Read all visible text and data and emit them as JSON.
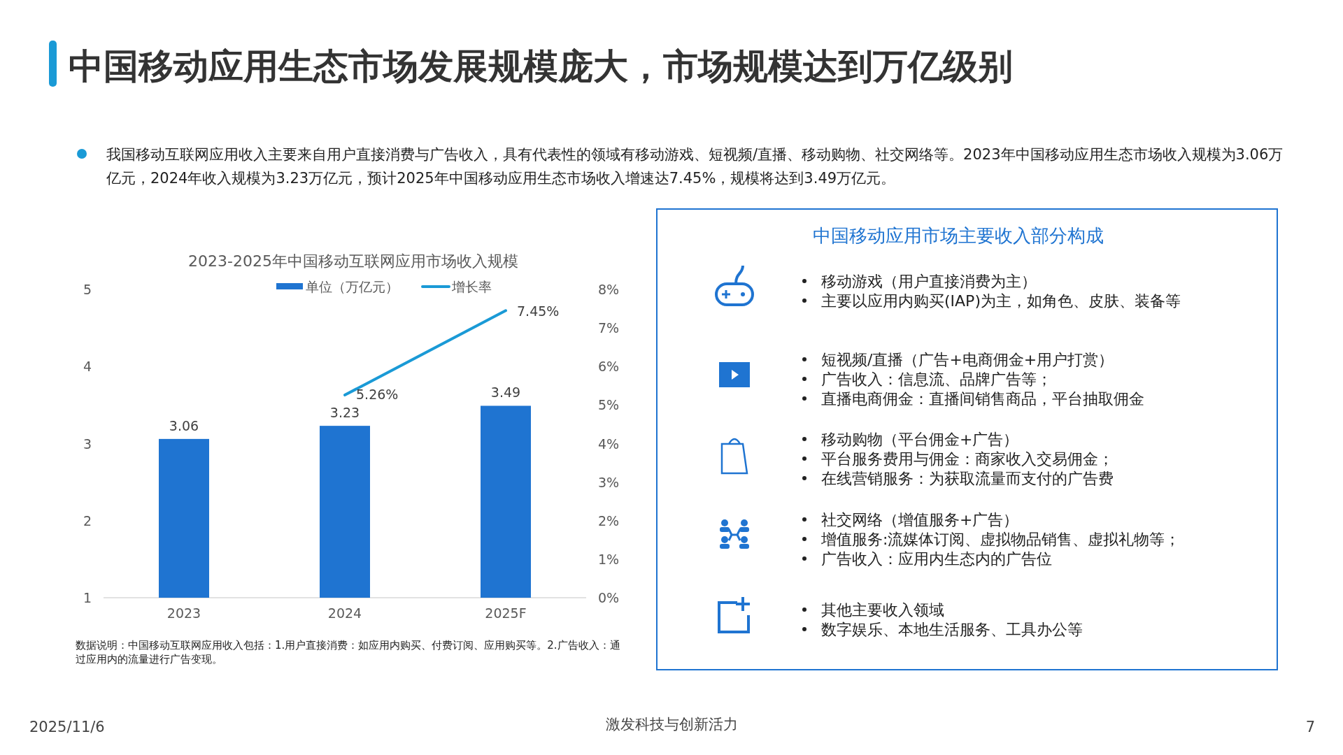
{
  "chart_data": [
    {
      "type": "other",
      "title": "中国移动应用生态市场发展规模庞大，市场规模达到万亿级别",
      "subtitle": "我国移动互联网应用收入主要来自用户直接消费与广告收入，具有代表性的领域有移动游戏、短视频/直播、移动购物、社交网络等。2023年中国移动应用生态市场收入规模为3.06万亿元，2024年收入规模为3.23万亿元，预计2025年中国移动应用生态市场收入增速达7.45%，规模将达到3.49万亿元。",
      "annotations": [
        "2025/11/6",
        "激发科技与创新活力",
        "7"
      ]
    },
    {
      "type": "bar",
      "title": "2023-2025年中国移动互联网应用市场收入规模",
      "categories": [
        "2023",
        "2024",
        "2025F"
      ],
      "series": [
        {
          "name": "单位（万亿元）",
          "type": "bar",
          "color": "#1f74d1",
          "values": [
            3.06,
            3.23,
            3.49
          ],
          "value_labels": [
            "3.06",
            "3.23",
            "3.49"
          ]
        },
        {
          "name": "增长率",
          "type": "line",
          "axis": "y2",
          "color": "#1a9ad6",
          "values": [
            null,
            5.26,
            7.45
          ],
          "value_labels": [
            null,
            "5.26%",
            "7.45%"
          ]
        }
      ],
      "ylim": [
        1,
        5
      ],
      "yticks": [
        1,
        2,
        3,
        4,
        5
      ],
      "y2lim": [
        0,
        8
      ],
      "y2ticks": [
        {
          "value": 0,
          "label": "0%"
        },
        {
          "value": 1,
          "label": "1%"
        },
        {
          "value": 2,
          "label": "2%"
        },
        {
          "value": 3,
          "label": "3%"
        },
        {
          "value": 4,
          "label": "4%"
        },
        {
          "value": 5,
          "label": "5%"
        },
        {
          "value": 6,
          "label": "6%"
        },
        {
          "value": 7,
          "label": "7%"
        },
        {
          "value": 8,
          "label": "8%"
        }
      ],
      "legend": "top",
      "annotations": [
        "数据说明：中国移动互联网应用收入包括：1.用户直接消费：如应用内购买、付费订阅、应用购买等。2.广告收入：通过应用内的流量进行广告变现。"
      ]
    },
    {
      "type": "other",
      "title": "中国移动应用市场主要收入部分构成",
      "annotations": [
        "移动游戏（用户直接消费为主）",
        "主要以应用内购买(IAP)为主，如角色、皮肤、装备等",
        "短视频/直播（广告+电商佣金+用户打赏）",
        "广告收入：信息流、品牌广告等；",
        "直播电商佣金：直播间销售商品，平台抽取佣金",
        "移动购物（平台佣金+广告）",
        "平台服务费用与佣金：商家收入交易佣金；",
        "在线营销服务：为获取流量而支付的广告费",
        "社交网络（增值服务+广告）",
        "增值服务:流媒体订阅、虚拟物品销售、虚拟礼物等；",
        "广告收入：应用内生态内的广告位",
        "其他主要收入领域",
        "数字娱乐、本地生活服务、工具办公等"
      ]
    }
  ]
}
